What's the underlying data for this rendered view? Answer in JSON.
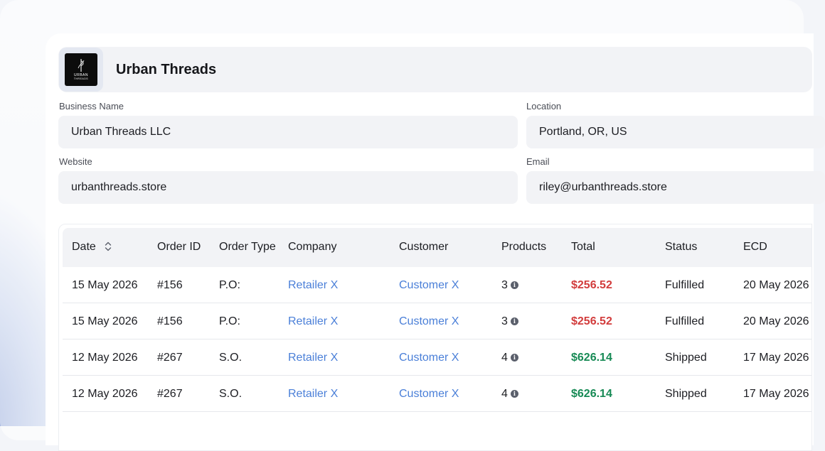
{
  "business": {
    "name_header": "Urban Threads",
    "logo_text_top": "URBAN",
    "logo_text_bottom": "THREADS"
  },
  "fields": {
    "business_name": {
      "label": "Business Name",
      "value": "Urban Threads LLC"
    },
    "location": {
      "label": "Location",
      "value": "Portland, OR, US"
    },
    "website": {
      "label": "Website",
      "value": "urbanthreads.store"
    },
    "email": {
      "label": "Email",
      "value": "riley@urbanthreads.store"
    }
  },
  "table": {
    "headers": {
      "date": "Date",
      "order_id": "Order ID",
      "order_type": "Order Type",
      "company": "Company",
      "customer": "Customer",
      "products": "Products",
      "total": "Total",
      "status": "Status",
      "ecd": "ECD"
    },
    "rows": [
      {
        "date": "15 May 2026",
        "order_id": "#156",
        "order_type": "P.O:",
        "company": "Retailer X",
        "customer": "Customer X",
        "products": "3",
        "total": "$256.52",
        "total_color": "#d23c3c",
        "status": "Fulfilled",
        "ecd": "20 May 2026"
      },
      {
        "date": "15 May 2026",
        "order_id": "#156",
        "order_type": "P.O:",
        "company": "Retailer X",
        "customer": "Customer X",
        "products": "3",
        "total": "$256.52",
        "total_color": "#d23c3c",
        "status": "Fulfilled",
        "ecd": "20 May 2026"
      },
      {
        "date": "12 May 2026",
        "order_id": "#267",
        "order_type": "S.O.",
        "company": "Retailer X",
        "customer": "Customer X",
        "products": "4",
        "total": "$626.14",
        "total_color": "#178a55",
        "status": "Shipped",
        "ecd": "17 May 2026"
      },
      {
        "date": "12 May 2026",
        "order_id": "#267",
        "order_type": "S.O.",
        "company": "Retailer X",
        "customer": "Customer X",
        "products": "4",
        "total": "$626.14",
        "total_color": "#178a55",
        "status": "Shipped",
        "ecd": "17 May 2026"
      }
    ]
  },
  "colors": {
    "link": "#4a7fd8",
    "total_negative": "#d23c3c",
    "total_positive": "#178a55",
    "field_bg": "#f2f3f6"
  }
}
